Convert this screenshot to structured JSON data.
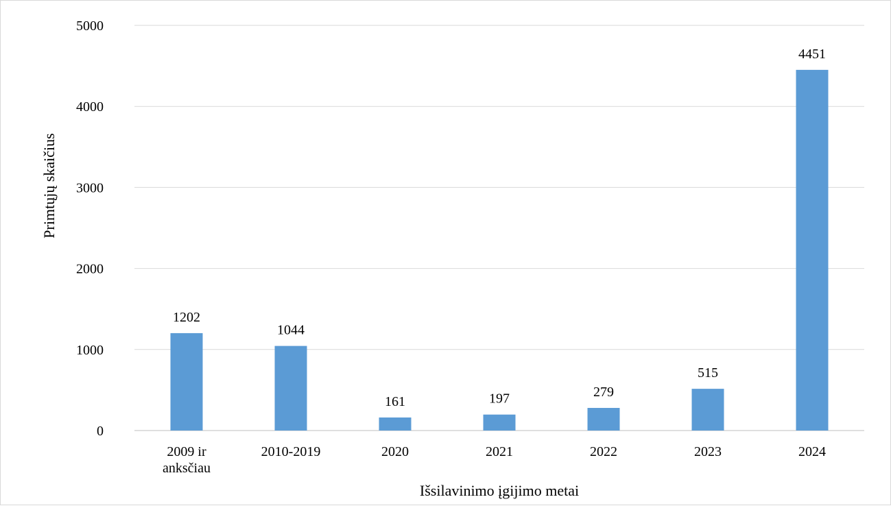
{
  "chart_data": {
    "type": "bar",
    "title": "",
    "xlabel": "Išsilavinimo įgijimo metai",
    "ylabel": "Primtųjų skaičius",
    "categories": [
      [
        "2009 ir",
        "anksčiau"
      ],
      [
        "2010-2019"
      ],
      [
        "2020"
      ],
      [
        "2021"
      ],
      [
        "2022"
      ],
      [
        "2023"
      ],
      [
        "2024"
      ]
    ],
    "values": [
      1202,
      1044,
      161,
      197,
      279,
      515,
      4451
    ],
    "ylim": [
      0,
      5000
    ],
    "yticks": [
      0,
      1000,
      2000,
      3000,
      4000,
      5000
    ],
    "grid": true,
    "legend": "none",
    "bar_color": "#5b9bd5",
    "grid_color": "#d9d9d9",
    "axis_color": "#bfbfbf"
  }
}
